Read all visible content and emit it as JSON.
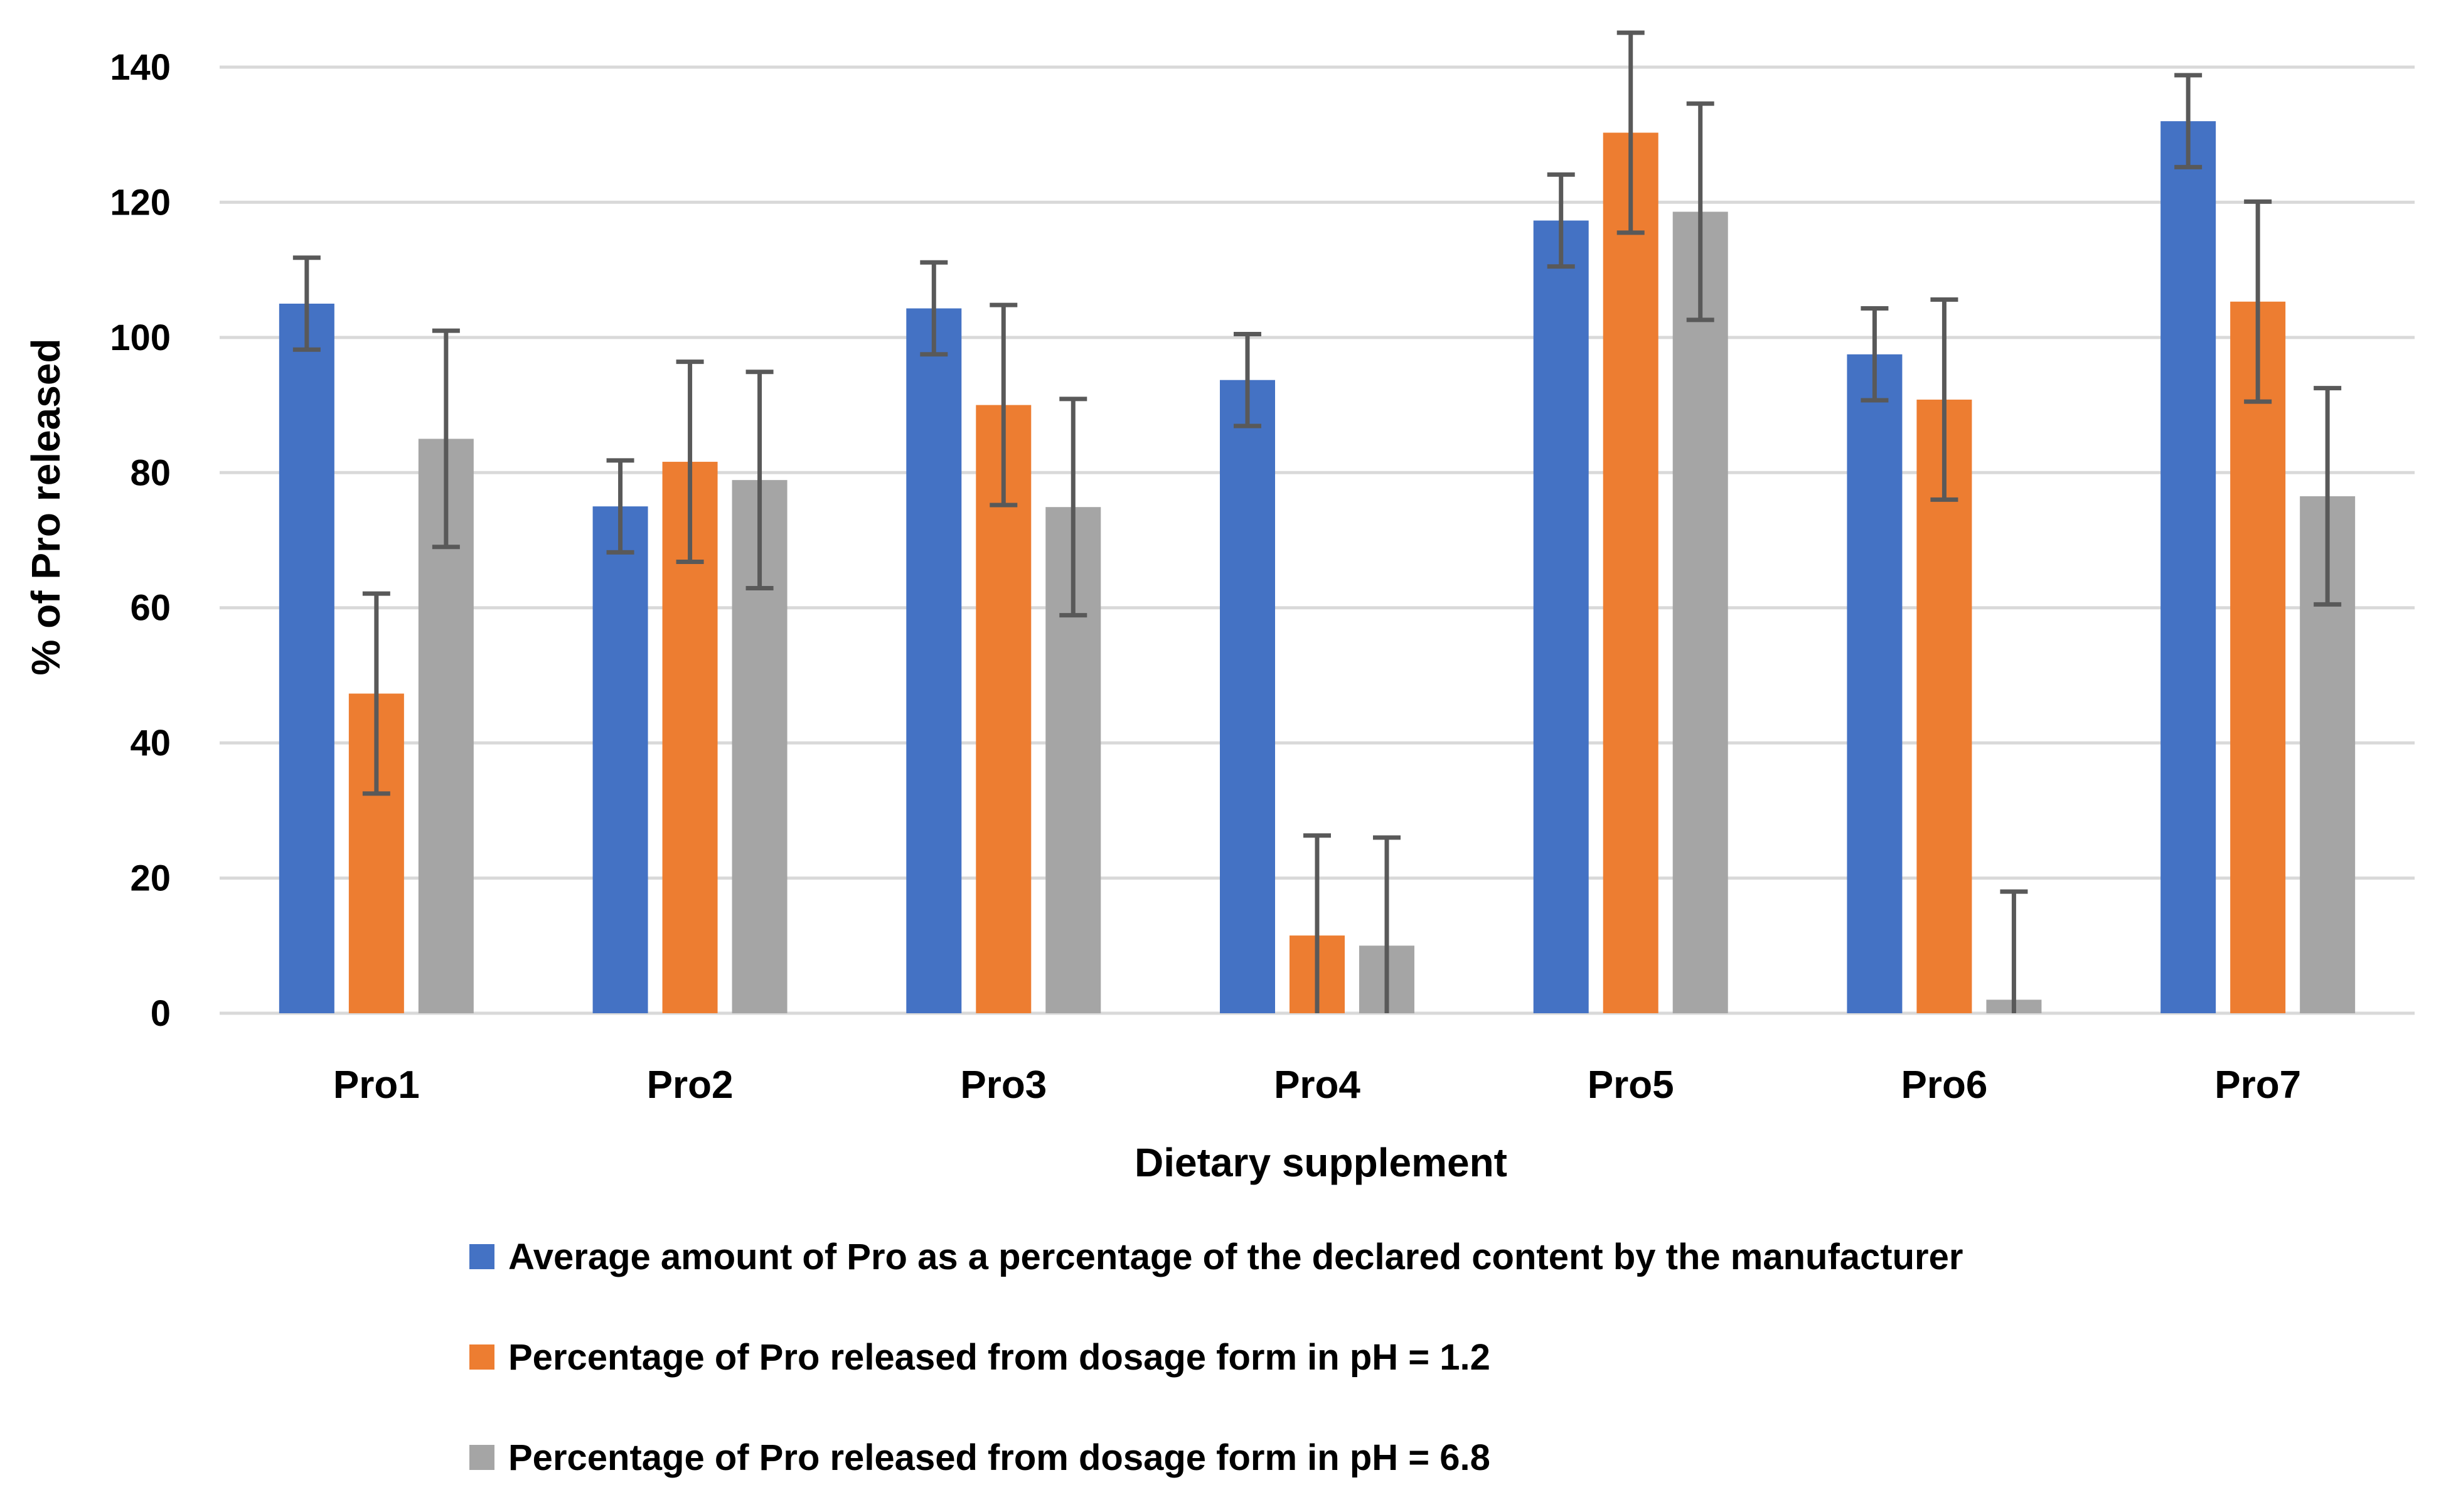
{
  "chart_data": {
    "type": "bar",
    "title": "",
    "xlabel": "Dietary supplement",
    "ylabel": "% of Pro released",
    "ylim": [
      0,
      140
    ],
    "yticks": [
      0,
      20,
      40,
      60,
      80,
      100,
      120,
      140
    ],
    "grid": true,
    "legend_position": "bottom",
    "categories": [
      "Pro1",
      "Pro2",
      "Pro3",
      "Pro4",
      "Pro5",
      "Pro6",
      "Pro7"
    ],
    "series": [
      {
        "name": "Average amount of Pro as a percentage of the declared content by the manufacturer",
        "color": "#4472C4",
        "values": [
          105,
          75,
          104.3,
          93.7,
          117.3,
          97.5,
          132
        ],
        "errors": [
          6.8,
          6.8,
          6.8,
          6.8,
          6.8,
          6.8,
          6.8
        ]
      },
      {
        "name": "Percentage of Pro released from dosage form in pH = 1.2",
        "color": "#ED7D31",
        "values": [
          47.3,
          81.6,
          90,
          11.5,
          130.3,
          90.8,
          105.3
        ],
        "errors": [
          14.8,
          14.8,
          14.8,
          14.8,
          14.8,
          14.8,
          14.8
        ]
      },
      {
        "name": "Percentage of Pro released from dosage form in pH = 6.8",
        "color": "#A5A5A5",
        "values": [
          85,
          78.9,
          74.9,
          10,
          118.6,
          2,
          76.5
        ],
        "errors": [
          16,
          16,
          16,
          16,
          16,
          16,
          16
        ]
      }
    ]
  }
}
